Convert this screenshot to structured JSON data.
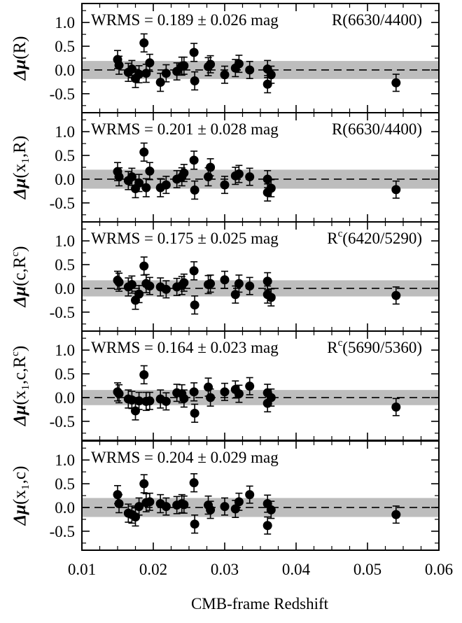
{
  "chart_data": {
    "type": "scatter",
    "xlabel": "CMB-frame Redshift",
    "xlim": [
      0.01,
      0.06
    ],
    "xticks": [
      0.01,
      0.02,
      0.03,
      0.04,
      0.05,
      0.06
    ],
    "xtick_labels": [
      "0.01",
      "0.02",
      "0.03",
      "0.04",
      "0.05",
      "0.06"
    ],
    "ylim": [
      -0.9,
      1.4
    ],
    "yticks": [
      -0.5,
      0.0,
      0.5,
      1.0
    ],
    "ytick_labels": [
      "-0.5",
      "0.0",
      "0.5",
      "1.0"
    ],
    "panels": [
      {
        "ylabel_symbol": "Δμ",
        "ylabel_args": "(R)",
        "wrms_text": "WRMS = 0.189 ± 0.026 mag",
        "ratio_label": "R(6630/4400)",
        "band_halfwidth": 0.19,
        "points": [
          {
            "x": 0.015,
            "y": 0.22,
            "err": 0.19
          },
          {
            "x": 0.0152,
            "y": 0.1,
            "err": 0.19
          },
          {
            "x": 0.0165,
            "y": -0.05,
            "err": 0.19
          },
          {
            "x": 0.017,
            "y": 0.02,
            "err": 0.18
          },
          {
            "x": 0.0175,
            "y": -0.18,
            "err": 0.19
          },
          {
            "x": 0.018,
            "y": -0.09,
            "err": 0.18
          },
          {
            "x": 0.0187,
            "y": 0.57,
            "err": 0.19
          },
          {
            "x": 0.019,
            "y": -0.07,
            "err": 0.19
          },
          {
            "x": 0.0195,
            "y": 0.15,
            "err": 0.18
          },
          {
            "x": 0.021,
            "y": -0.26,
            "err": 0.19
          },
          {
            "x": 0.0218,
            "y": -0.07,
            "err": 0.18
          },
          {
            "x": 0.0233,
            "y": -0.03,
            "err": 0.18
          },
          {
            "x": 0.024,
            "y": 0.08,
            "err": 0.19
          },
          {
            "x": 0.0243,
            "y": 0.09,
            "err": 0.18
          },
          {
            "x": 0.0257,
            "y": 0.37,
            "err": 0.19
          },
          {
            "x": 0.0258,
            "y": -0.23,
            "err": 0.19
          },
          {
            "x": 0.0277,
            "y": 0.07,
            "err": 0.19
          },
          {
            "x": 0.028,
            "y": 0.12,
            "err": 0.18
          },
          {
            "x": 0.03,
            "y": -0.1,
            "err": 0.18
          },
          {
            "x": 0.0315,
            "y": 0.04,
            "err": 0.18
          },
          {
            "x": 0.032,
            "y": 0.13,
            "err": 0.18
          },
          {
            "x": 0.0335,
            "y": 0.0,
            "err": 0.18
          },
          {
            "x": 0.036,
            "y": 0.02,
            "err": 0.18
          },
          {
            "x": 0.036,
            "y": -0.3,
            "err": 0.18
          },
          {
            "x": 0.0365,
            "y": -0.1,
            "err": 0.18
          },
          {
            "x": 0.054,
            "y": -0.27,
            "err": 0.18
          }
        ]
      },
      {
        "ylabel_symbol": "Δμ",
        "ylabel_args": "(x₁,R)",
        "wrms_text": "WRMS = 0.201 ± 0.028 mag",
        "ratio_label": "R(6630/4400)",
        "band_halfwidth": 0.2,
        "points": [
          {
            "x": 0.015,
            "y": 0.16,
            "err": 0.19
          },
          {
            "x": 0.0152,
            "y": 0.05,
            "err": 0.19
          },
          {
            "x": 0.0165,
            "y": -0.03,
            "err": 0.19
          },
          {
            "x": 0.017,
            "y": 0.05,
            "err": 0.18
          },
          {
            "x": 0.0175,
            "y": -0.2,
            "err": 0.19
          },
          {
            "x": 0.018,
            "y": -0.08,
            "err": 0.18
          },
          {
            "x": 0.0187,
            "y": 0.57,
            "err": 0.19
          },
          {
            "x": 0.019,
            "y": -0.18,
            "err": 0.19
          },
          {
            "x": 0.0195,
            "y": 0.17,
            "err": 0.18
          },
          {
            "x": 0.021,
            "y": -0.18,
            "err": 0.19
          },
          {
            "x": 0.0218,
            "y": -0.12,
            "err": 0.18
          },
          {
            "x": 0.0233,
            "y": 0.0,
            "err": 0.18
          },
          {
            "x": 0.024,
            "y": 0.05,
            "err": 0.19
          },
          {
            "x": 0.0243,
            "y": 0.13,
            "err": 0.18
          },
          {
            "x": 0.0257,
            "y": 0.4,
            "err": 0.19
          },
          {
            "x": 0.0258,
            "y": -0.23,
            "err": 0.19
          },
          {
            "x": 0.0277,
            "y": 0.05,
            "err": 0.19
          },
          {
            "x": 0.028,
            "y": 0.25,
            "err": 0.18
          },
          {
            "x": 0.03,
            "y": -0.12,
            "err": 0.18
          },
          {
            "x": 0.0315,
            "y": 0.07,
            "err": 0.18
          },
          {
            "x": 0.032,
            "y": 0.11,
            "err": 0.18
          },
          {
            "x": 0.0335,
            "y": 0.05,
            "err": 0.18
          },
          {
            "x": 0.036,
            "y": 0.0,
            "err": 0.18
          },
          {
            "x": 0.036,
            "y": -0.28,
            "err": 0.18
          },
          {
            "x": 0.0365,
            "y": -0.19,
            "err": 0.18
          },
          {
            "x": 0.054,
            "y": -0.22,
            "err": 0.18
          }
        ]
      },
      {
        "ylabel_symbol": "Δμ",
        "ylabel_args": "(c,R",
        "ylabel_sup": "c",
        "ylabel_close": ")",
        "wrms_text": "WRMS = 0.175 ± 0.025 mag",
        "ratio_label_prefix": "R",
        "ratio_label_sup": "c",
        "ratio_label_suffix": "(6420/5290)",
        "band_halfwidth": 0.17,
        "points": [
          {
            "x": 0.015,
            "y": 0.17,
            "err": 0.19
          },
          {
            "x": 0.0152,
            "y": 0.13,
            "err": 0.19
          },
          {
            "x": 0.0165,
            "y": 0.03,
            "err": 0.19
          },
          {
            "x": 0.017,
            "y": 0.08,
            "err": 0.18
          },
          {
            "x": 0.0175,
            "y": -0.25,
            "err": 0.19
          },
          {
            "x": 0.018,
            "y": -0.12,
            "err": 0.18
          },
          {
            "x": 0.0187,
            "y": 0.47,
            "err": 0.19
          },
          {
            "x": 0.019,
            "y": 0.1,
            "err": 0.19
          },
          {
            "x": 0.0195,
            "y": 0.05,
            "err": 0.18
          },
          {
            "x": 0.021,
            "y": 0.03,
            "err": 0.19
          },
          {
            "x": 0.0218,
            "y": -0.02,
            "err": 0.18
          },
          {
            "x": 0.0233,
            "y": 0.03,
            "err": 0.18
          },
          {
            "x": 0.024,
            "y": 0.06,
            "err": 0.19
          },
          {
            "x": 0.0243,
            "y": 0.12,
            "err": 0.18
          },
          {
            "x": 0.0257,
            "y": 0.37,
            "err": 0.19
          },
          {
            "x": 0.0258,
            "y": -0.35,
            "err": 0.19
          },
          {
            "x": 0.0277,
            "y": 0.08,
            "err": 0.19
          },
          {
            "x": 0.028,
            "y": 0.1,
            "err": 0.18
          },
          {
            "x": 0.03,
            "y": 0.18,
            "err": 0.18
          },
          {
            "x": 0.0315,
            "y": -0.13,
            "err": 0.18
          },
          {
            "x": 0.032,
            "y": 0.1,
            "err": 0.18
          },
          {
            "x": 0.0335,
            "y": 0.05,
            "err": 0.18
          },
          {
            "x": 0.036,
            "y": 0.15,
            "err": 0.18
          },
          {
            "x": 0.036,
            "y": -0.13,
            "err": 0.18
          },
          {
            "x": 0.0365,
            "y": -0.19,
            "err": 0.18
          },
          {
            "x": 0.054,
            "y": -0.15,
            "err": 0.18
          }
        ]
      },
      {
        "ylabel_symbol": "Δμ",
        "ylabel_args": "(x₁,c,R",
        "ylabel_sup": "c",
        "ylabel_close": ")",
        "wrms_text": "WRMS = 0.164 ± 0.023 mag",
        "ratio_label_prefix": "R",
        "ratio_label_sup": "c",
        "ratio_label_suffix": "(5690/5360)",
        "band_halfwidth": 0.16,
        "points": [
          {
            "x": 0.015,
            "y": 0.12,
            "err": 0.19
          },
          {
            "x": 0.0152,
            "y": 0.08,
            "err": 0.19
          },
          {
            "x": 0.0165,
            "y": -0.03,
            "err": 0.19
          },
          {
            "x": 0.017,
            "y": -0.05,
            "err": 0.18
          },
          {
            "x": 0.0175,
            "y": -0.28,
            "err": 0.19
          },
          {
            "x": 0.018,
            "y": -0.07,
            "err": 0.18
          },
          {
            "x": 0.0187,
            "y": 0.48,
            "err": 0.19
          },
          {
            "x": 0.019,
            "y": -0.08,
            "err": 0.19
          },
          {
            "x": 0.0195,
            "y": -0.07,
            "err": 0.18
          },
          {
            "x": 0.021,
            "y": -0.03,
            "err": 0.19
          },
          {
            "x": 0.0218,
            "y": -0.08,
            "err": 0.18
          },
          {
            "x": 0.0233,
            "y": 0.1,
            "err": 0.18
          },
          {
            "x": 0.024,
            "y": 0.08,
            "err": 0.19
          },
          {
            "x": 0.0243,
            "y": -0.02,
            "err": 0.18
          },
          {
            "x": 0.0257,
            "y": 0.12,
            "err": 0.19
          },
          {
            "x": 0.0258,
            "y": -0.33,
            "err": 0.19
          },
          {
            "x": 0.0277,
            "y": 0.22,
            "err": 0.19
          },
          {
            "x": 0.028,
            "y": 0.0,
            "err": 0.18
          },
          {
            "x": 0.03,
            "y": 0.12,
            "err": 0.18
          },
          {
            "x": 0.0315,
            "y": 0.17,
            "err": 0.18
          },
          {
            "x": 0.032,
            "y": 0.08,
            "err": 0.18
          },
          {
            "x": 0.0335,
            "y": 0.24,
            "err": 0.18
          },
          {
            "x": 0.036,
            "y": 0.1,
            "err": 0.18
          },
          {
            "x": 0.036,
            "y": -0.12,
            "err": 0.18
          },
          {
            "x": 0.0365,
            "y": 0.0,
            "err": 0.18
          },
          {
            "x": 0.054,
            "y": -0.2,
            "err": 0.18
          }
        ]
      },
      {
        "ylabel_symbol": "Δμ",
        "ylabel_args": "(x₁,c)",
        "wrms_text": "WRMS = 0.204 ± 0.029 mag",
        "band_halfwidth": 0.2,
        "points": [
          {
            "x": 0.015,
            "y": 0.27,
            "err": 0.19
          },
          {
            "x": 0.0152,
            "y": 0.08,
            "err": 0.19
          },
          {
            "x": 0.0165,
            "y": -0.12,
            "err": 0.19
          },
          {
            "x": 0.017,
            "y": -0.15,
            "err": 0.18
          },
          {
            "x": 0.0175,
            "y": -0.2,
            "err": 0.19
          },
          {
            "x": 0.018,
            "y": 0.02,
            "err": 0.18
          },
          {
            "x": 0.0187,
            "y": 0.5,
            "err": 0.19
          },
          {
            "x": 0.019,
            "y": 0.1,
            "err": 0.19
          },
          {
            "x": 0.0195,
            "y": 0.12,
            "err": 0.18
          },
          {
            "x": 0.021,
            "y": 0.08,
            "err": 0.19
          },
          {
            "x": 0.0218,
            "y": 0.02,
            "err": 0.18
          },
          {
            "x": 0.0233,
            "y": 0.05,
            "err": 0.18
          },
          {
            "x": 0.024,
            "y": 0.08,
            "err": 0.19
          },
          {
            "x": 0.0243,
            "y": 0.06,
            "err": 0.18
          },
          {
            "x": 0.0257,
            "y": 0.52,
            "err": 0.19
          },
          {
            "x": 0.0258,
            "y": -0.35,
            "err": 0.19
          },
          {
            "x": 0.0277,
            "y": 0.05,
            "err": 0.19
          },
          {
            "x": 0.028,
            "y": -0.05,
            "err": 0.18
          },
          {
            "x": 0.03,
            "y": 0.02,
            "err": 0.18
          },
          {
            "x": 0.0315,
            "y": -0.03,
            "err": 0.18
          },
          {
            "x": 0.032,
            "y": 0.12,
            "err": 0.18
          },
          {
            "x": 0.0335,
            "y": 0.27,
            "err": 0.18
          },
          {
            "x": 0.036,
            "y": 0.08,
            "err": 0.18
          },
          {
            "x": 0.036,
            "y": -0.38,
            "err": 0.18
          },
          {
            "x": 0.0365,
            "y": -0.05,
            "err": 0.18
          },
          {
            "x": 0.054,
            "y": -0.15,
            "err": 0.18
          }
        ]
      }
    ]
  }
}
